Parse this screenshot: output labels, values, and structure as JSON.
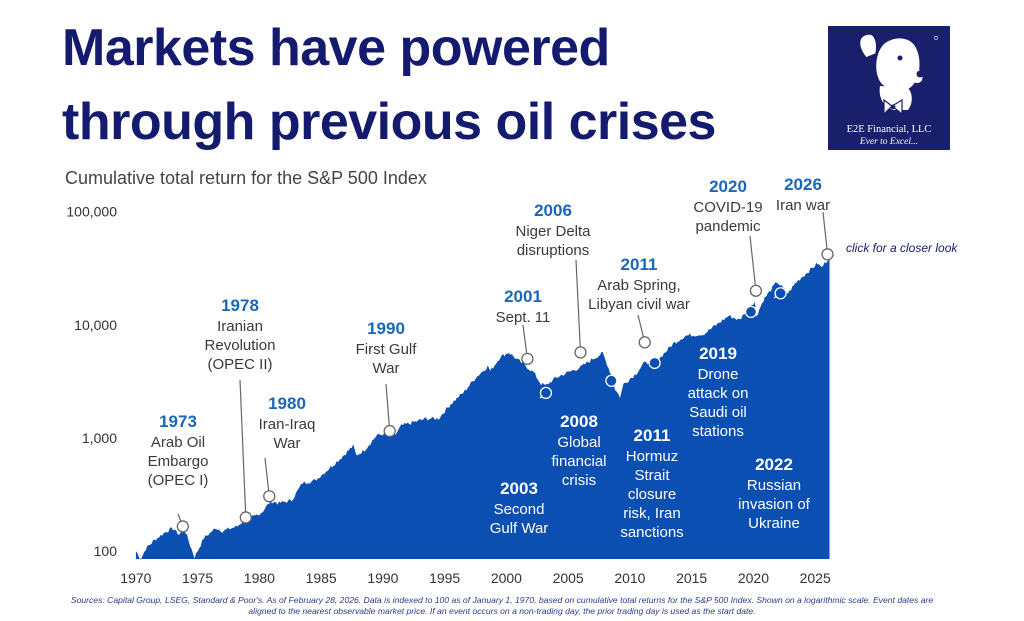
{
  "title_line1": "Markets have powered",
  "title_line2": "through previous oil crises",
  "subtitle": "Cumulative total return for the S&P 500 Index",
  "logo": {
    "name": "E2E Financial, LLC",
    "tagline": "Ever to Excel...",
    "icon": "dog-mascot-icon"
  },
  "closer_link": "click for a closer look",
  "sources": "Sources: Capital Group, LSEG, Standard & Poor's. As of February 28, 2026. Data is indexed to 100 as of January 1, 1970, based on cumulative total returns for the S&P 500 Index. Shown on a logarithmic scale. Event dates are aligned to the nearest observable market price. If an event occurs on a non-trading day, the prior trading day is used as the start date.",
  "colors": {
    "title": "#141a6e",
    "area": "#0b4fb3",
    "year": "#1b67b8",
    "text": "#3a3a3a"
  },
  "chart_data": {
    "type": "area",
    "title": "Cumulative total return for the S&P 500 Index",
    "y_scale": "log",
    "xlim": [
      1969.2,
      2026.2
    ],
    "ylim": [
      85,
      110000
    ],
    "x_ticks": [
      1970,
      1975,
      1980,
      1985,
      1990,
      1995,
      2000,
      2005,
      2010,
      2015,
      2020,
      2025
    ],
    "y_ticks": [
      {
        "value": 100,
        "label": "100"
      },
      {
        "value": 1000,
        "label": "1,000"
      },
      {
        "value": 10000,
        "label": "10,000"
      },
      {
        "value": 100000,
        "label": "100,000"
      }
    ],
    "series": [
      {
        "x": [
          1970.0,
          1970.4,
          1970.8,
          1971.5,
          1972.5,
          1973.0,
          1973.5,
          1973.9,
          1974.4,
          1974.75,
          1975.5,
          1976.5,
          1977.0,
          1978.2,
          1978.7,
          1979.5,
          1980.2,
          1980.9,
          1981.6,
          1982.6,
          1983.5,
          1984.5,
          1985.5,
          1986.5,
          1987.6,
          1987.85,
          1988.5,
          1989.5,
          1990.6,
          1990.8,
          1991.5,
          1992.5,
          1993.5,
          1994.5,
          1995.5,
          1996.5,
          1997.5,
          1998.5,
          1998.7,
          1999.5,
          2000.2,
          2000.7,
          2001.7,
          2002.2,
          2002.8,
          2003.2,
          2004.0,
          2005.0,
          2006.0,
          2007.0,
          2007.8,
          2008.5,
          2008.8,
          2009.2,
          2009.5,
          2010.5,
          2011.3,
          2011.7,
          2012.5,
          2013.5,
          2014.5,
          2015.5,
          2016.0,
          2017.0,
          2018.0,
          2018.9,
          2019.5,
          2020.1,
          2020.25,
          2020.8,
          2021.9,
          2022.8,
          2023.5,
          2024.5,
          2025.2,
          2025.5,
          2026.16
        ],
        "values": [
          100,
          85,
          105,
          125,
          150,
          158,
          140,
          160,
          112,
          88,
          130,
          160,
          150,
          165,
          185,
          200,
          220,
          275,
          265,
          280,
          400,
          420,
          520,
          650,
          850,
          700,
          780,
          1050,
          1120,
          990,
          1280,
          1380,
          1480,
          1480,
          2000,
          2500,
          3400,
          4300,
          3900,
          5200,
          5700,
          5100,
          4200,
          3800,
          3000,
          2900,
          3400,
          3800,
          4200,
          5000,
          5600,
          3600,
          2700,
          2300,
          3000,
          3700,
          4800,
          4400,
          5200,
          6800,
          8000,
          8200,
          8300,
          10000,
          12000,
          11000,
          14000,
          16000,
          12000,
          16500,
          24000,
          19000,
          24000,
          30000,
          35000,
          32000,
          39500
        ]
      }
    ],
    "events": [
      {
        "year": "1973",
        "x": 1973.8,
        "y": 165,
        "label": [
          "Arab Oil",
          "Embargo",
          "(OPEC I)"
        ]
      },
      {
        "year": "1978",
        "x": 1978.9,
        "y": 198,
        "label": [
          "Iranian",
          "Revolution",
          "(OPEC II)"
        ]
      },
      {
        "year": "1980",
        "x": 1980.8,
        "y": 305,
        "label": [
          "Iran-Iraq",
          "War"
        ]
      },
      {
        "year": "1990",
        "x": 1990.55,
        "y": 1150,
        "label": [
          "First Gulf",
          "War"
        ]
      },
      {
        "year": "2001",
        "x": 2001.7,
        "y": 5000,
        "label": [
          "Sept. 11"
        ]
      },
      {
        "year": "2003",
        "x": 2003.2,
        "y": 2500,
        "label": [
          "Second",
          "Gulf War"
        ]
      },
      {
        "year": "2006",
        "x": 2006.0,
        "y": 5700,
        "label": [
          "Niger Delta",
          "disruptions"
        ]
      },
      {
        "year": "2008",
        "x": 2008.5,
        "y": 3200,
        "label": [
          "Global",
          "financial",
          "crisis"
        ]
      },
      {
        "year": "2011",
        "x": 2011.2,
        "y": 7000,
        "label": [
          "Arab Spring,",
          "Libyan civil war"
        ]
      },
      {
        "year": "2011",
        "x": 2012.0,
        "y": 4600,
        "label": [
          "Hormuz",
          "Strait",
          "closure",
          "risk, Iran",
          "sanctions"
        ]
      },
      {
        "year": "2019",
        "x": 2019.8,
        "y": 13000,
        "label": [
          "Drone",
          "attack on",
          "Saudi oil",
          "stations"
        ]
      },
      {
        "year": "2020",
        "x": 2020.2,
        "y": 20000,
        "label": [
          "COVID-19",
          "pandemic"
        ]
      },
      {
        "year": "2022",
        "x": 2022.2,
        "y": 19000,
        "label": [
          "Russian",
          "invasion of",
          "Ukraine"
        ]
      },
      {
        "year": "2026",
        "x": 2026.0,
        "y": 42000,
        "label": [
          "Iran war"
        ]
      }
    ]
  }
}
